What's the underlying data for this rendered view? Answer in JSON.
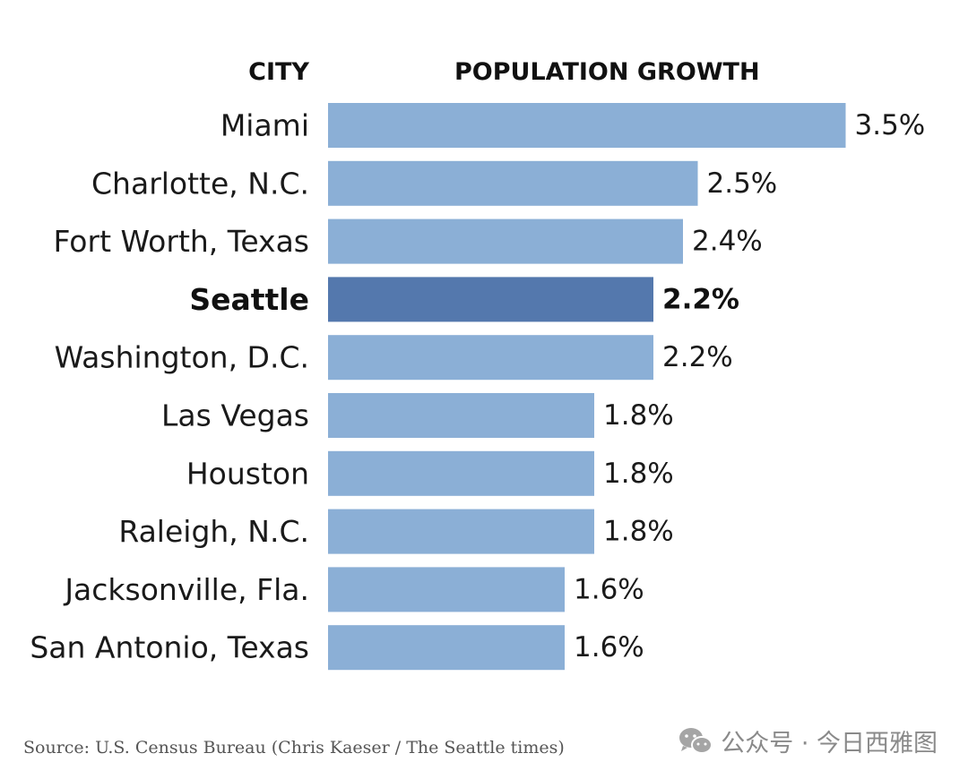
{
  "headers": {
    "city": "CITY",
    "growth": "POPULATION GROWTH"
  },
  "chart_data": {
    "type": "bar",
    "orientation": "horizontal",
    "categories": [
      "Miami",
      "Charlotte, N.C.",
      "Fort Worth, Texas",
      "Seattle",
      "Washington, D.C.",
      "Las Vegas",
      "Houston",
      "Raleigh, N.C.",
      "Jacksonville, Fla.",
      "San Antonio, Texas"
    ],
    "values": [
      3.5,
      2.5,
      2.4,
      2.2,
      2.2,
      1.8,
      1.8,
      1.8,
      1.6,
      1.6
    ],
    "value_labels": [
      "3.5%",
      "2.5%",
      "2.4%",
      "2.2%",
      "2.2%",
      "1.8%",
      "1.8%",
      "1.8%",
      "1.6%",
      "1.6%"
    ],
    "highlight": "Seattle",
    "bar_color": "#8BAFD6",
    "highlight_color": "#5478AD"
  },
  "source": "Source: U.S. Census Bureau (Chris Kaeser / The Seattle times)",
  "watermark": {
    "icon": "wechat-icon",
    "text": "公众号 · 今日西雅图"
  }
}
